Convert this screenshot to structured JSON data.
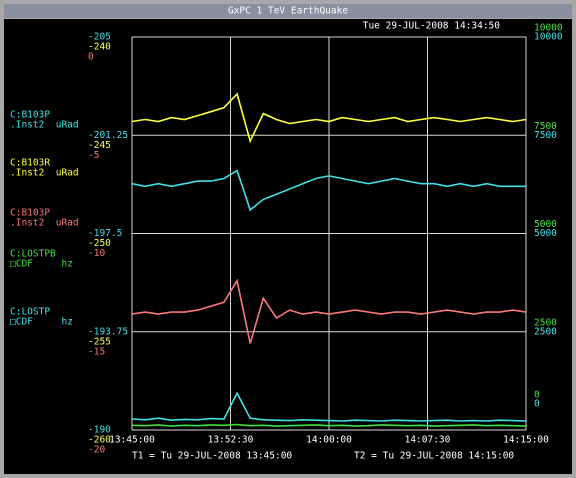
{
  "window": {
    "title": "GxPC 1 TeV EarthQuake"
  },
  "timestamp": "Tue 29-JUL-2008 14:34:50",
  "channels": [
    {
      "name": "C:B103P",
      "detail": ".Inst2  uRad",
      "color": "#40e0e8"
    },
    {
      "name": "C:B103R",
      "detail": ".Inst2  uRad",
      "color": "#ffff40"
    },
    {
      "name": "C:B103P",
      "detail": ".Inst2  uRad",
      "color": "#f87878"
    },
    {
      "name": "C:LOSTPB",
      "detail": "□CDF     hz",
      "color": "#40e040"
    },
    {
      "name": "C:LOSTP",
      "detail": "□CDF     hz",
      "color": "#40e0e8"
    }
  ],
  "left_scales": [
    {
      "color": "#40e0e8",
      "ticks": [
        -205,
        -201.25,
        -197.5,
        -193.75,
        -190
      ],
      "values": [
        -199.4,
        -199.3,
        -199.4,
        -199.3,
        -199.4,
        -199.5,
        -199.5,
        -199.6,
        -199.9,
        -198.4,
        -198.8,
        -199.0,
        -199.2,
        -199.4,
        -199.6,
        -199.7,
        -199.6,
        -199.5,
        -199.4,
        -199.5,
        -199.6,
        -199.5,
        -199.4,
        -199.4,
        -199.3,
        -199.4,
        -199.3,
        -199.4,
        -199.3,
        -199.3,
        -199.3
      ]
    },
    {
      "color": "#ffff40",
      "ticks": [
        -240,
        -245,
        -250,
        -255,
        -260
      ],
      "values": [
        -244.3,
        -244.2,
        -244.3,
        -244.1,
        -244.2,
        -244.0,
        -243.8,
        -243.6,
        -242.9,
        -245.3,
        -243.9,
        -244.2,
        -244.4,
        -244.3,
        -244.2,
        -244.3,
        -244.1,
        -244.2,
        -244.3,
        -244.2,
        -244.1,
        -244.3,
        -244.2,
        -244.1,
        -244.2,
        -244.3,
        -244.2,
        -244.1,
        -244.2,
        -244.3,
        -244.2
      ]
    },
    {
      "color": "#f87878",
      "ticks": [
        0,
        -5,
        -10,
        -15,
        -20
      ],
      "values": [
        -14.1,
        -14.0,
        -14.1,
        -14.0,
        -14.0,
        -13.9,
        -13.7,
        -13.5,
        -12.4,
        -15.6,
        -13.3,
        -14.3,
        -13.9,
        -14.1,
        -14.0,
        -14.1,
        -14.0,
        -13.9,
        -14.0,
        -14.1,
        -14.0,
        -14.0,
        -14.1,
        -14.0,
        -13.9,
        -14.0,
        -14.1,
        -14.0,
        -14.0,
        -13.9,
        -14.0
      ]
    }
  ],
  "right_scales": [
    {
      "color": "#40e040",
      "ticks": [
        10000,
        7500,
        5000,
        2500,
        0
      ],
      "values": [
        120,
        110,
        130,
        100,
        120,
        110,
        130,
        120,
        140,
        110,
        120,
        100,
        110,
        120,
        130,
        110,
        120,
        100,
        110,
        130,
        120,
        110,
        120,
        100,
        110,
        120,
        130,
        110,
        120,
        110,
        100
      ]
    },
    {
      "color": "#40e0e8",
      "ticks": [
        10000,
        7500,
        5000,
        2500,
        0
      ],
      "values": [
        280,
        260,
        300,
        250,
        270,
        260,
        290,
        280,
        940,
        300,
        260,
        250,
        240,
        260,
        250,
        240,
        230,
        250,
        240,
        230,
        250,
        240,
        230,
        240,
        250,
        230,
        240,
        230,
        250,
        240,
        230
      ]
    }
  ],
  "x_ticks": [
    "13:45:00",
    "13:52:30",
    "14:00:00",
    "14:07:30",
    "14:15:00"
  ],
  "footer": {
    "t1": "T1 = Tu 29-JUL-2008 13:45:00",
    "t2": "T2 = Tu 29-JUL-2008 14:15:00"
  }
}
